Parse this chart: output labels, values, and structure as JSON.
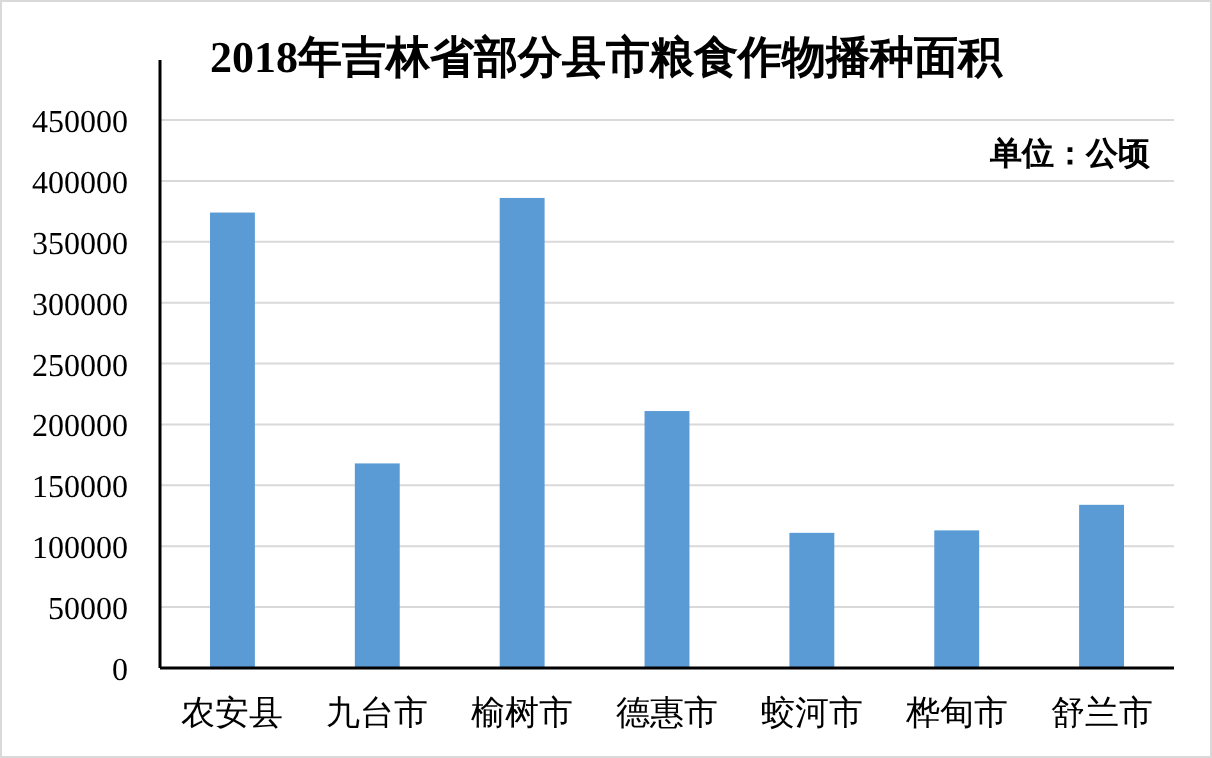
{
  "chart_data": {
    "type": "bar",
    "title": "2018年吉林省部分县市粮食作物播种面积",
    "categories": [
      "农安县",
      "九台市",
      "榆树市",
      "德惠市",
      "蛟河市",
      "桦甸市",
      "舒兰市"
    ],
    "values": [
      374000,
      168000,
      386000,
      211000,
      111000,
      113000,
      134000
    ],
    "color": "#5b9bd5",
    "ylim": [
      0,
      450000
    ],
    "yticks": [
      0,
      50000,
      100000,
      150000,
      200000,
      250000,
      300000,
      350000,
      400000,
      450000
    ],
    "grid": "y",
    "annotations": [
      "单位：公顷"
    ]
  }
}
